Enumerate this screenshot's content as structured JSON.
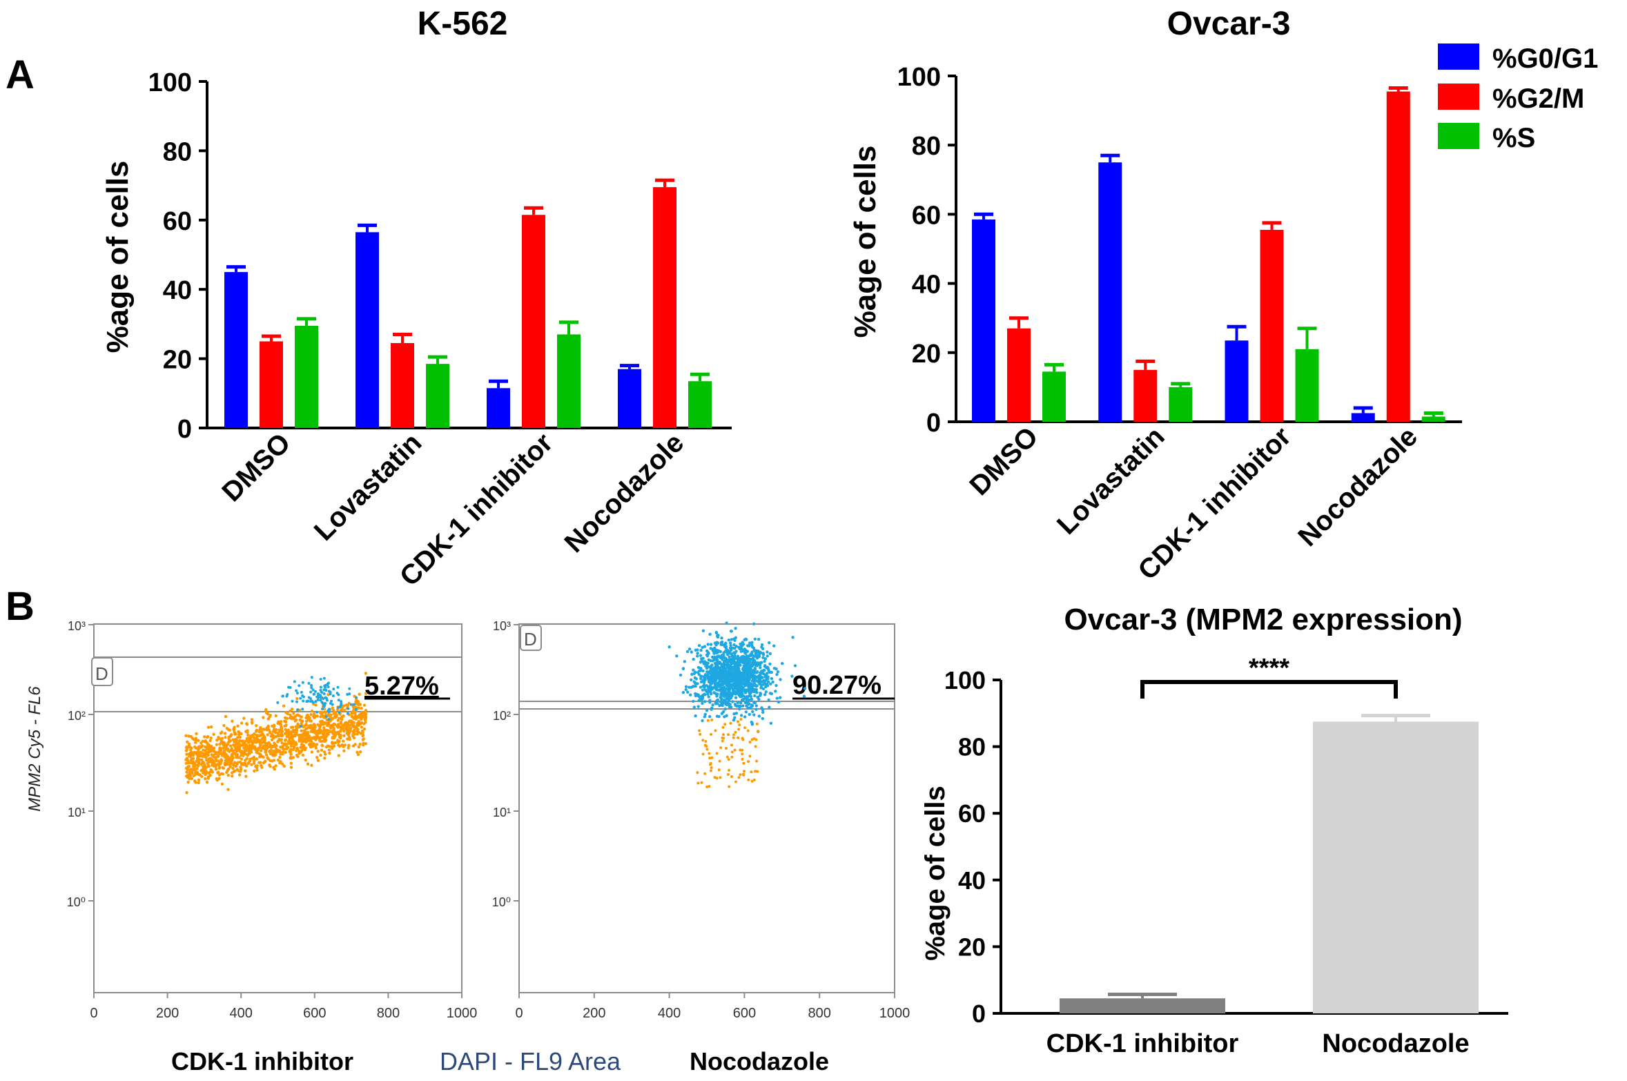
{
  "panels": {
    "a_label": "A",
    "b_label": "B"
  },
  "colors": {
    "g0g1": "#0000ff",
    "g2m": "#ff0000",
    "s": "#00c000",
    "dark_gray": "#808080",
    "light_gray": "#d3d3d3",
    "orange": "#ff9900",
    "cyan": "#1ea7e1",
    "frame": "#8c8c8c"
  },
  "chart_data": [
    {
      "id": "k562",
      "type": "bar",
      "title": "K-562",
      "xlabel": "",
      "ylabel": "%age of cells",
      "ylim": [
        0,
        100
      ],
      "yticks": [
        "0",
        "20",
        "40",
        "60",
        "80",
        "100"
      ],
      "categories": [
        "DMSO",
        "Lovastatin",
        "CDK-1 inhibitor",
        "Nocodazole"
      ],
      "series": [
        {
          "name": "%G0/G1",
          "values": [
            45,
            56.5,
            11.5,
            17
          ],
          "errors": [
            1.5,
            2,
            2,
            1
          ]
        },
        {
          "name": "%G2/M",
          "values": [
            25,
            24.5,
            61.5,
            69.5
          ],
          "errors": [
            1.5,
            2.5,
            2,
            2
          ]
        },
        {
          "name": "%S",
          "values": [
            29.5,
            18.5,
            27,
            13.5
          ],
          "errors": [
            2,
            2,
            3.5,
            2
          ]
        }
      ]
    },
    {
      "id": "ovcar3",
      "type": "bar",
      "title": "Ovcar-3",
      "xlabel": "",
      "ylabel": "%age of cells",
      "ylim": [
        0,
        100
      ],
      "yticks": [
        "0",
        "20",
        "40",
        "60",
        "80",
        "100"
      ],
      "categories": [
        "DMSO",
        "Lovastatin",
        "CDK-1 inhibitor",
        "Nocodazole"
      ],
      "legend": [
        "%G0/G1",
        "%G2/M",
        "%S"
      ],
      "series": [
        {
          "name": "%G0/G1",
          "values": [
            58.5,
            75,
            23.5,
            2.5
          ],
          "errors": [
            1.5,
            2,
            4,
            1.5
          ]
        },
        {
          "name": "%G2/M",
          "values": [
            27,
            15,
            55.5,
            95.5
          ],
          "errors": [
            3,
            2.5,
            2,
            1
          ]
        },
        {
          "name": "%S",
          "values": [
            14.5,
            10,
            21,
            1.5
          ],
          "errors": [
            2,
            1,
            6,
            1
          ]
        }
      ]
    },
    {
      "id": "scatter_cdk1",
      "type": "scatter",
      "title": "",
      "xlabel": "CDK-1 inhibitor",
      "ylabel": "MPM2 Cy5 - FL6",
      "xlim": [
        0,
        1000
      ],
      "xticks": [
        "0",
        "200",
        "400",
        "600",
        "800",
        "1000"
      ],
      "yticks": [
        "10⁰",
        "10¹",
        "10²",
        "10³"
      ],
      "gate_label": "D",
      "gate_percent": "5.27%"
    },
    {
      "id": "scatter_nocodazole",
      "type": "scatter",
      "title": "",
      "xlabel": "Nocodazole",
      "xlim": [
        0,
        1000
      ],
      "xticks": [
        "0",
        "200",
        "400",
        "600",
        "800",
        "1000"
      ],
      "yticks": [
        "10⁰",
        "10¹",
        "10²",
        "10³"
      ],
      "gate_label": "D",
      "gate_percent": "90.27%"
    },
    {
      "id": "mpm2",
      "type": "bar",
      "title": "Ovcar-3 (MPM2 expression)",
      "xlabel": "",
      "ylabel": "%age of cells",
      "ylim": [
        0,
        100
      ],
      "yticks": [
        "0",
        "20",
        "40",
        "60",
        "80",
        "100"
      ],
      "categories": [
        "CDK-1 inhibitor",
        "Nocodazole"
      ],
      "values": [
        4.5,
        87.5
      ],
      "errors": [
        1.2,
        1.8
      ],
      "significance": "****"
    }
  ],
  "shared_xlabel": "DAPI - FL9 Area"
}
